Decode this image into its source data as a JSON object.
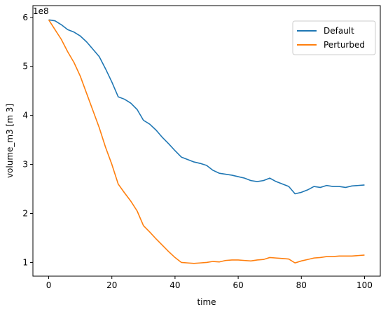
{
  "chart_data": {
    "type": "line",
    "title": "",
    "xlabel": "time",
    "ylabel": "volume_m3 [m 3]",
    "y_offset_label": "1e8",
    "y_scale": 100000000,
    "xlim": [
      -5,
      105
    ],
    "ylim": [
      0.72,
      6.24
    ],
    "xticks": [
      0,
      20,
      40,
      60,
      80,
      100
    ],
    "xtick_labels": [
      "0",
      "20",
      "40",
      "60",
      "80",
      "100"
    ],
    "yticks": [
      1,
      2,
      3,
      4,
      5,
      6
    ],
    "ytick_labels": [
      "1",
      "2",
      "3",
      "4",
      "5",
      "6"
    ],
    "grid": false,
    "legend_position": "top-right",
    "series": [
      {
        "name": "Default",
        "color": "#1f77b4",
        "x": [
          0,
          2,
          4,
          6,
          8,
          10,
          12,
          14,
          16,
          18,
          20,
          22,
          24,
          26,
          28,
          30,
          32,
          34,
          36,
          38,
          40,
          42,
          44,
          46,
          48,
          50,
          52,
          54,
          56,
          58,
          60,
          62,
          64,
          66,
          68,
          70,
          72,
          74,
          76,
          78,
          80,
          82,
          84,
          86,
          88,
          90,
          92,
          94,
          96,
          98,
          100
        ],
        "y": [
          5.95,
          5.93,
          5.85,
          5.75,
          5.7,
          5.62,
          5.5,
          5.35,
          5.2,
          4.95,
          4.68,
          4.38,
          4.33,
          4.25,
          4.12,
          3.9,
          3.82,
          3.7,
          3.55,
          3.42,
          3.28,
          3.15,
          3.1,
          3.05,
          3.02,
          2.98,
          2.88,
          2.82,
          2.8,
          2.78,
          2.75,
          2.72,
          2.67,
          2.65,
          2.67,
          2.72,
          2.65,
          2.6,
          2.55,
          2.4,
          2.43,
          2.48,
          2.55,
          2.53,
          2.57,
          2.55,
          2.55,
          2.53,
          2.56,
          2.57,
          2.58
        ]
      },
      {
        "name": "Perturbed",
        "color": "#ff7f0e",
        "x": [
          0,
          2,
          4,
          6,
          8,
          10,
          12,
          14,
          16,
          18,
          20,
          22,
          24,
          26,
          28,
          30,
          32,
          34,
          36,
          38,
          40,
          42,
          44,
          46,
          48,
          50,
          52,
          54,
          56,
          58,
          60,
          62,
          64,
          66,
          68,
          70,
          72,
          74,
          76,
          78,
          80,
          82,
          84,
          86,
          88,
          90,
          92,
          94,
          96,
          98,
          100
        ],
        "y": [
          5.95,
          5.75,
          5.55,
          5.3,
          5.08,
          4.8,
          4.45,
          4.1,
          3.75,
          3.35,
          3.0,
          2.6,
          2.42,
          2.25,
          2.05,
          1.75,
          1.62,
          1.48,
          1.35,
          1.22,
          1.1,
          1.0,
          0.99,
          0.98,
          0.99,
          1.0,
          1.02,
          1.01,
          1.04,
          1.05,
          1.05,
          1.04,
          1.03,
          1.05,
          1.06,
          1.1,
          1.09,
          1.08,
          1.07,
          0.99,
          1.03,
          1.06,
          1.09,
          1.1,
          1.12,
          1.12,
          1.13,
          1.13,
          1.13,
          1.14,
          1.15
        ]
      }
    ]
  }
}
